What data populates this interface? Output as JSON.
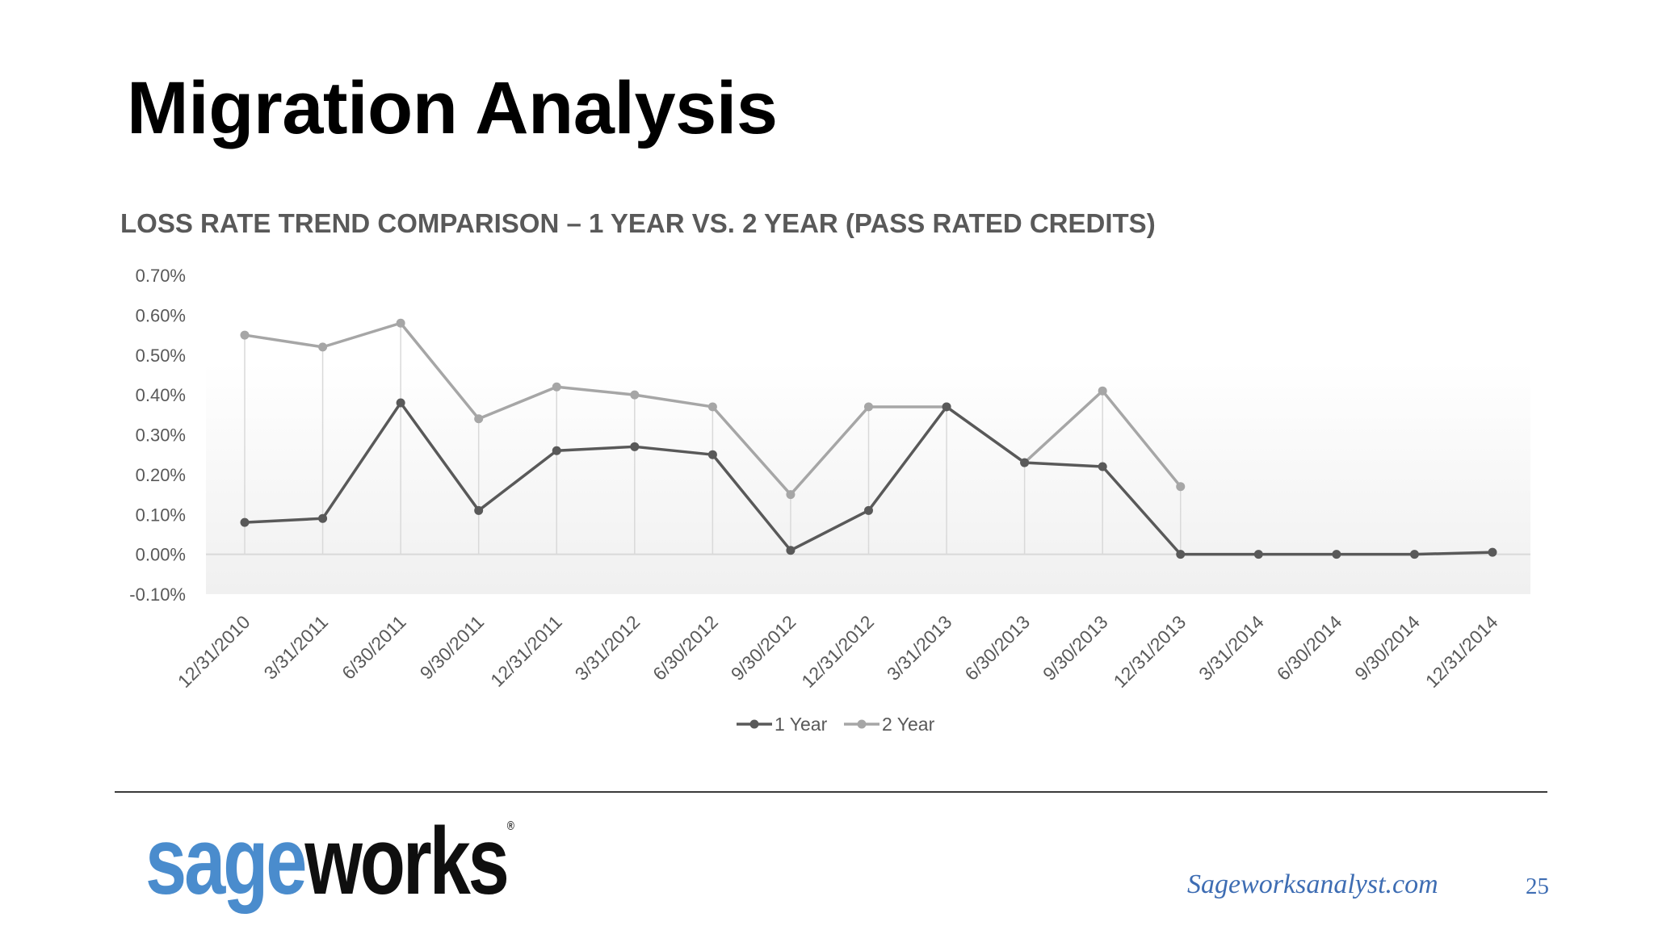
{
  "slide": {
    "title": "Migration Analysis",
    "footer_url": "Sageworksanalyst.com",
    "page_number": "25"
  },
  "logo": {
    "part1": "sage",
    "part2": "works",
    "registered": "®",
    "colors": {
      "part1": "#4a8ccd",
      "part2": "#0f0f0f"
    }
  },
  "chart_data": {
    "type": "line",
    "title": "LOSS RATE TREND COMPARISON – 1 YEAR VS. 2 YEAR (PASS RATED CREDITS)",
    "categories": [
      "12/31/2010",
      "3/31/2011",
      "6/30/2011",
      "9/30/2011",
      "12/31/2011",
      "3/31/2012",
      "6/30/2012",
      "9/30/2012",
      "12/31/2012",
      "3/31/2013",
      "6/30/2013",
      "9/30/2013",
      "12/31/2013",
      "3/31/2014",
      "6/30/2014",
      "9/30/2014",
      "12/31/2014"
    ],
    "series": [
      {
        "name": "1 Year",
        "color": "#595959",
        "values": [
          0.0008,
          0.0009,
          0.0038,
          0.0011,
          0.0026,
          0.0027,
          0.0025,
          0.0001,
          0.0011,
          0.0037,
          0.0023,
          0.0022,
          0.0,
          0.0,
          0.0,
          0.0,
          5e-05
        ]
      },
      {
        "name": "2 Year",
        "color": "#a6a6a6",
        "values": [
          0.0055,
          0.0052,
          0.0058,
          0.0034,
          0.0042,
          0.004,
          0.0037,
          0.0015,
          0.0037,
          0.0037,
          0.0023,
          0.0041,
          0.0017,
          null,
          null,
          null,
          null
        ]
      }
    ],
    "yticks": [
      "0.70%",
      "0.60%",
      "0.50%",
      "0.40%",
      "0.30%",
      "0.20%",
      "0.10%",
      "0.00%",
      "-0.10%"
    ],
    "ylim": [
      -0.001,
      0.007
    ],
    "drop_lines": true,
    "legend_position": "bottom"
  }
}
